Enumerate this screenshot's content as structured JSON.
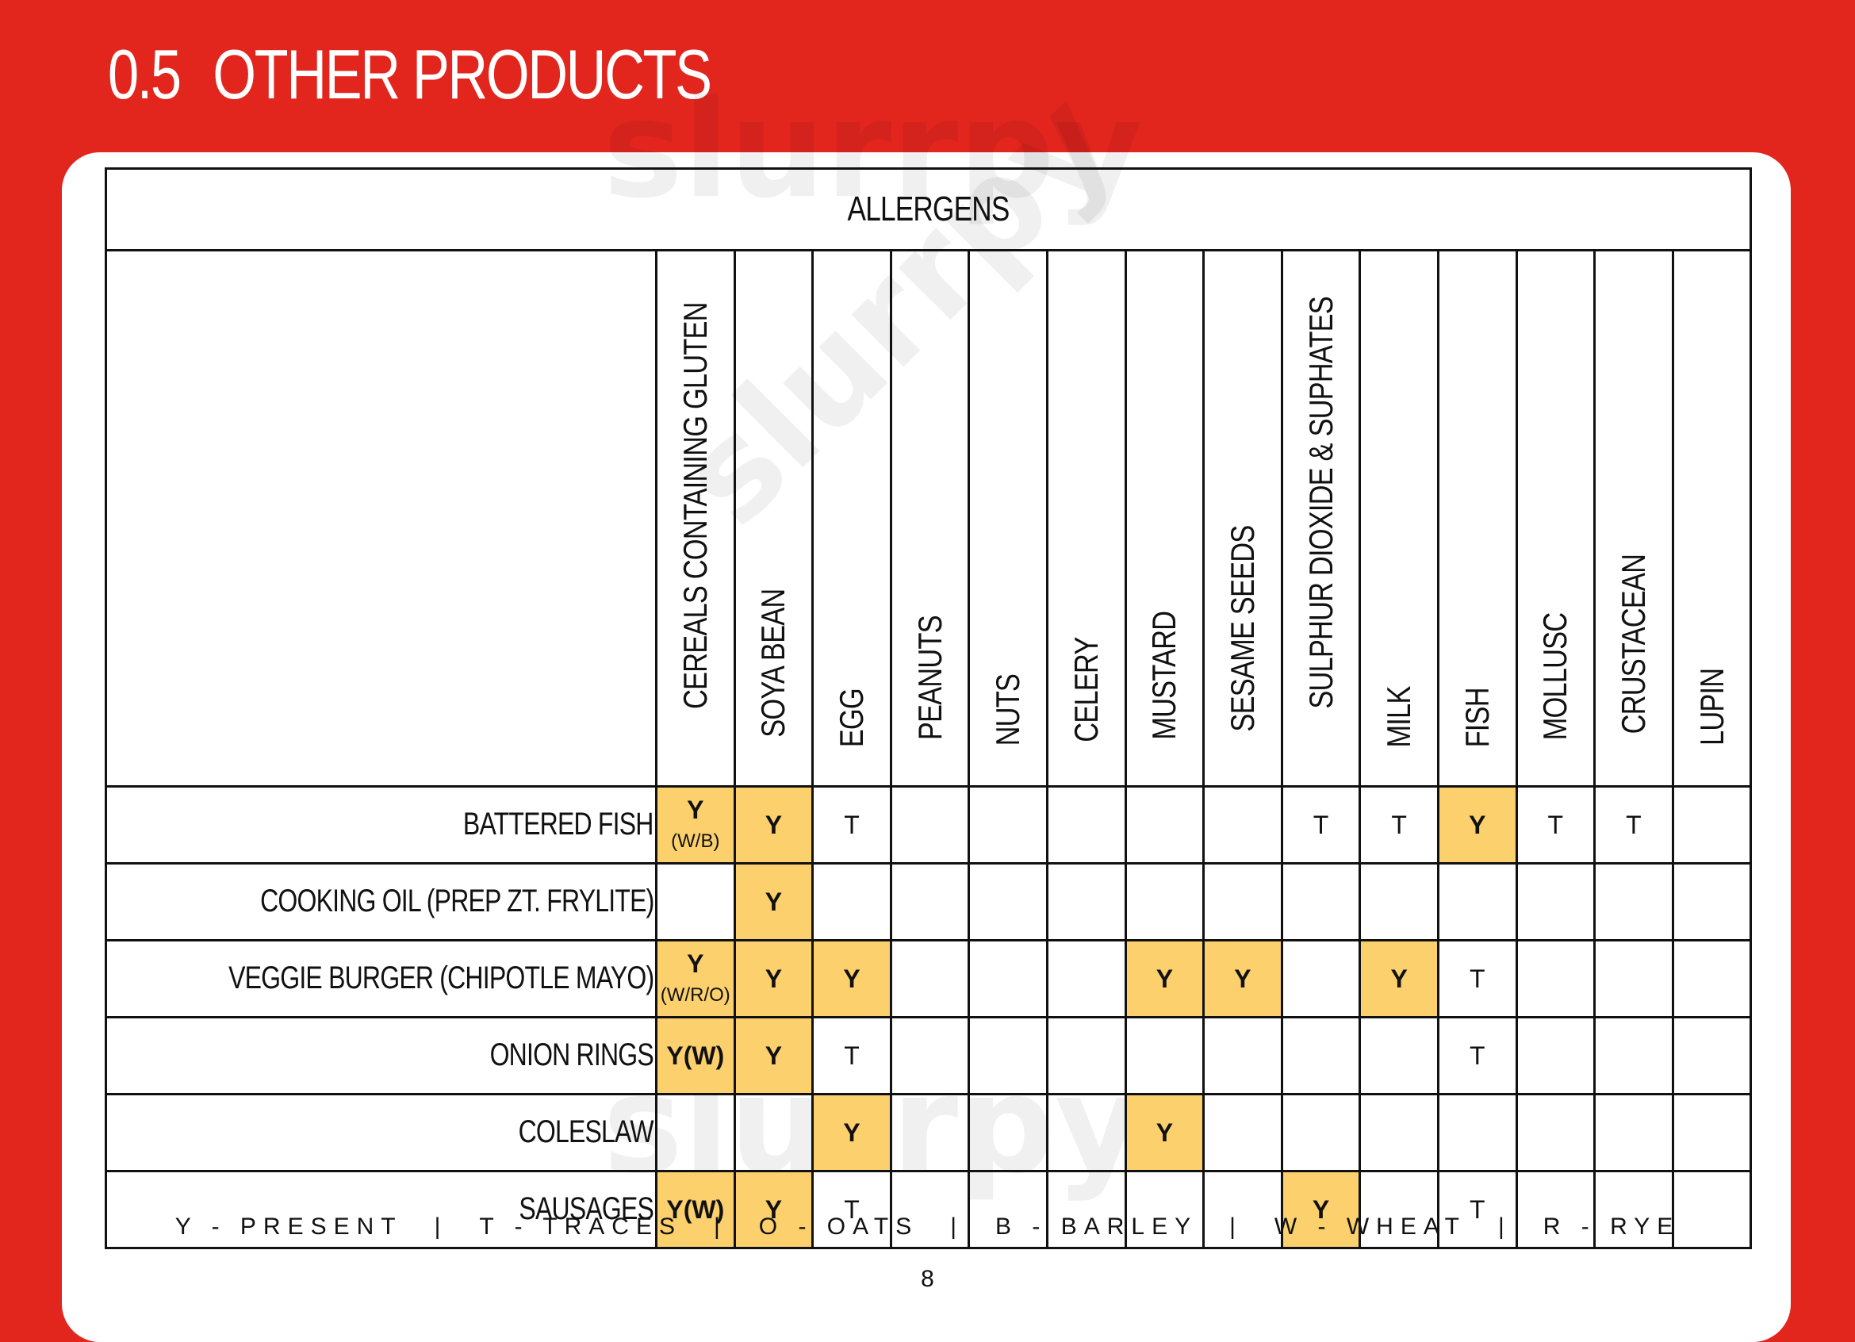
{
  "header": {
    "section_number": "0.5",
    "section_title": "OTHER PRODUCTS"
  },
  "watermark": {
    "text": "slurrpy"
  },
  "table": {
    "group_header": "ALLERGENS",
    "columns": [
      "CEREALS CONTAINING GLUTEN",
      "SOYA BEAN",
      "EGG",
      "PEANUTS",
      "NUTS",
      "CELERY",
      "MUSTARD",
      "SESAME SEEDS",
      "SULPHUR DIOXIDE & SUPHATES",
      "MILK",
      "FISH",
      "MOLLUSC",
      "CRUSTACEAN",
      "LUPIN"
    ],
    "rows": [
      {
        "product": "BATTERED FISH",
        "cells": [
          {
            "v": "Y",
            "sub": "(W/B)",
            "hl": true
          },
          {
            "v": "Y",
            "hl": true
          },
          {
            "v": "T"
          },
          {
            "v": ""
          },
          {
            "v": ""
          },
          {
            "v": ""
          },
          {
            "v": ""
          },
          {
            "v": ""
          },
          {
            "v": "T"
          },
          {
            "v": "T"
          },
          {
            "v": "Y",
            "hl": true
          },
          {
            "v": "T"
          },
          {
            "v": "T"
          },
          {
            "v": ""
          }
        ]
      },
      {
        "product": "COOKING OIL (PREP ZT. FRYLITE)",
        "cells": [
          {
            "v": ""
          },
          {
            "v": "Y",
            "hl": true
          },
          {
            "v": ""
          },
          {
            "v": ""
          },
          {
            "v": ""
          },
          {
            "v": ""
          },
          {
            "v": ""
          },
          {
            "v": ""
          },
          {
            "v": ""
          },
          {
            "v": ""
          },
          {
            "v": ""
          },
          {
            "v": ""
          },
          {
            "v": ""
          },
          {
            "v": ""
          }
        ]
      },
      {
        "product": "VEGGIE BURGER (CHIPOTLE MAYO)",
        "cells": [
          {
            "v": "Y",
            "sub": "(W/R/O)",
            "hl": true
          },
          {
            "v": "Y",
            "hl": true
          },
          {
            "v": "Y",
            "hl": true
          },
          {
            "v": ""
          },
          {
            "v": ""
          },
          {
            "v": ""
          },
          {
            "v": "Y",
            "hl": true
          },
          {
            "v": "Y",
            "hl": true
          },
          {
            "v": ""
          },
          {
            "v": "Y",
            "hl": true
          },
          {
            "v": "T"
          },
          {
            "v": ""
          },
          {
            "v": ""
          },
          {
            "v": ""
          }
        ]
      },
      {
        "product": "ONION RINGS",
        "cells": [
          {
            "v": "Y(W)",
            "hl": true
          },
          {
            "v": "Y",
            "hl": true
          },
          {
            "v": "T"
          },
          {
            "v": ""
          },
          {
            "v": ""
          },
          {
            "v": ""
          },
          {
            "v": ""
          },
          {
            "v": ""
          },
          {
            "v": ""
          },
          {
            "v": ""
          },
          {
            "v": "T"
          },
          {
            "v": ""
          },
          {
            "v": ""
          },
          {
            "v": ""
          }
        ]
      },
      {
        "product": "COLESLAW",
        "cells": [
          {
            "v": ""
          },
          {
            "v": ""
          },
          {
            "v": "Y",
            "hl": true
          },
          {
            "v": ""
          },
          {
            "v": ""
          },
          {
            "v": ""
          },
          {
            "v": "Y",
            "hl": true
          },
          {
            "v": ""
          },
          {
            "v": ""
          },
          {
            "v": ""
          },
          {
            "v": ""
          },
          {
            "v": ""
          },
          {
            "v": ""
          },
          {
            "v": ""
          }
        ]
      },
      {
        "product": "SAUSAGES",
        "cells": [
          {
            "v": "Y(W)",
            "hl": true
          },
          {
            "v": "Y",
            "hl": true
          },
          {
            "v": "T"
          },
          {
            "v": ""
          },
          {
            "v": ""
          },
          {
            "v": ""
          },
          {
            "v": ""
          },
          {
            "v": ""
          },
          {
            "v": "Y",
            "hl": true
          },
          {
            "v": ""
          },
          {
            "v": "T"
          },
          {
            "v": ""
          },
          {
            "v": ""
          },
          {
            "v": ""
          }
        ]
      }
    ]
  },
  "legend": [
    "Y - PRESENT",
    "T - TRACES",
    "O - OATS",
    "B - BARLEY",
    "W - WHEAT",
    "R - RYE"
  ],
  "legend_separator": "|",
  "page_number": "8",
  "colors": {
    "background": "#e2261e",
    "highlight": "#fcd06d",
    "card": "#ffffff"
  }
}
